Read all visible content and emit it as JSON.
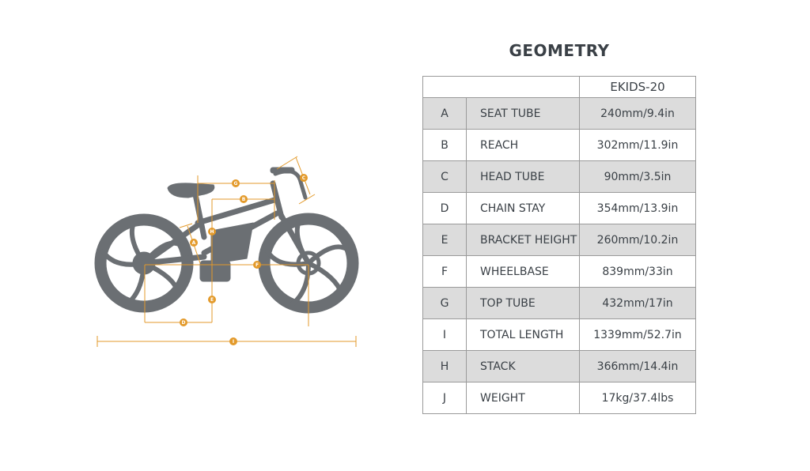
{
  "title": "GEOMETRY",
  "model": "EKIDS-20",
  "colors": {
    "bike": "#6b6f73",
    "dimension": "#e39a2b",
    "row_shade": "#dcdcdc",
    "text": "#3a4046"
  },
  "rows": [
    {
      "key": "A",
      "name": "SEAT TUBE",
      "value": "240mm/9.4in"
    },
    {
      "key": "B",
      "name": "REACH",
      "value": "302mm/11.9in"
    },
    {
      "key": "C",
      "name": "HEAD TUBE",
      "value": "90mm/3.5in"
    },
    {
      "key": "D",
      "name": "CHAIN STAY",
      "value": "354mm/13.9in"
    },
    {
      "key": "E",
      "name": "BRACKET HEIGHT",
      "value": "260mm/10.2in"
    },
    {
      "key": "F",
      "name": "WHEELBASE",
      "value": "839mm/33in"
    },
    {
      "key": "G",
      "name": "TOP TUBE",
      "value": "432mm/17in"
    },
    {
      "key": "I",
      "name": "TOTAL LENGTH",
      "value": "1339mm/52.7in"
    },
    {
      "key": "H",
      "name": "STACK",
      "value": "366mm/14.4in"
    },
    {
      "key": "J",
      "name": "WEIGHT",
      "value": "17kg/37.4lbs"
    }
  ],
  "diagram_labels": [
    "A",
    "B",
    "C",
    "D",
    "E",
    "F",
    "G",
    "H",
    "I"
  ]
}
